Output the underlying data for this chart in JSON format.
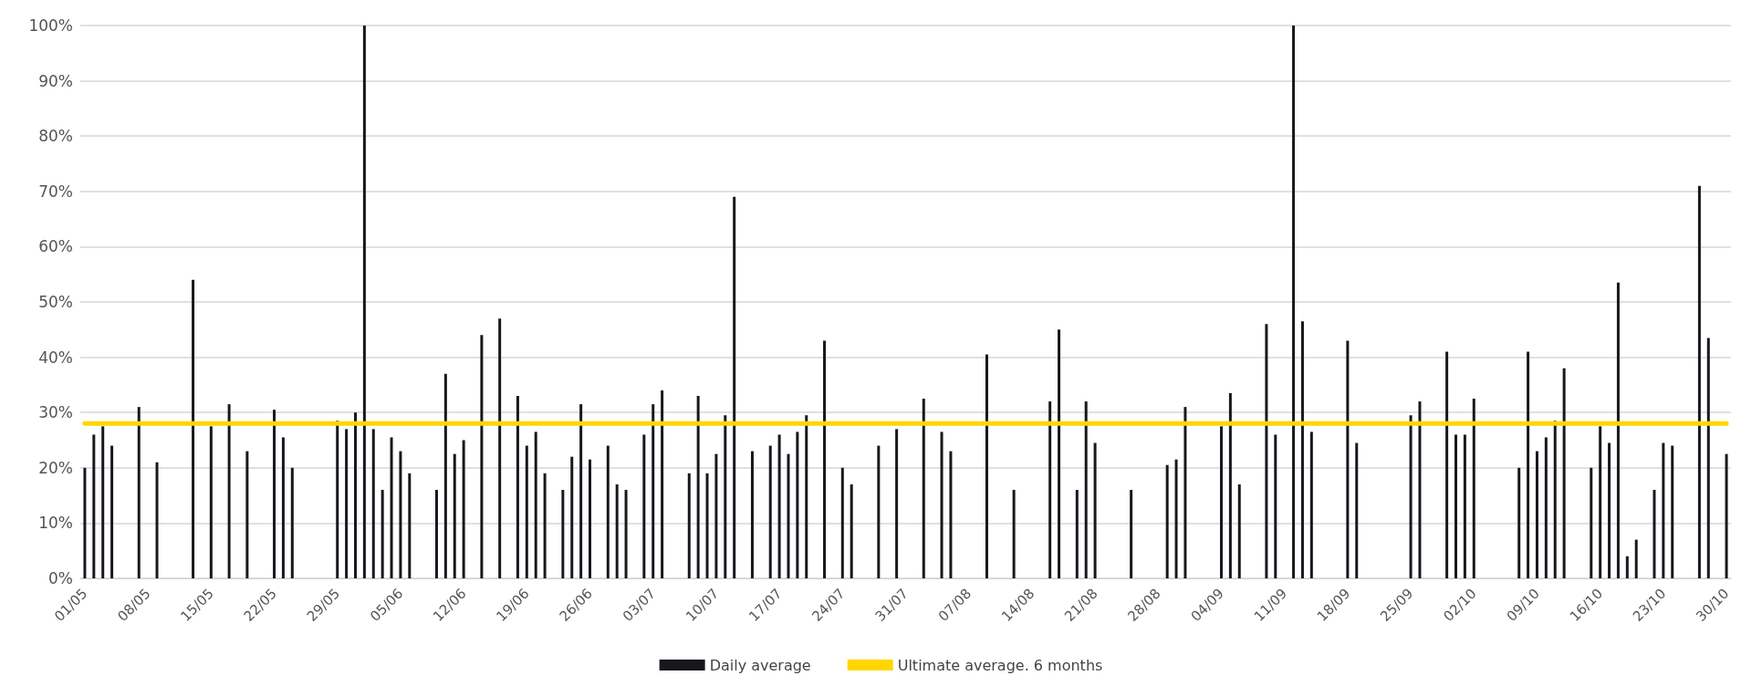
{
  "chart_data": {
    "type": "bar",
    "categories": [
      "01/05",
      null,
      null,
      null,
      null,
      null,
      null,
      "08/05",
      null,
      null,
      null,
      null,
      null,
      null,
      "15/05",
      null,
      null,
      null,
      null,
      null,
      null,
      "22/05",
      null,
      null,
      null,
      null,
      null,
      null,
      "29/05",
      null,
      null,
      null,
      null,
      null,
      null,
      "05/06",
      null,
      null,
      null,
      null,
      null,
      null,
      "12/06",
      null,
      null,
      null,
      null,
      null,
      null,
      "19/06",
      null,
      null,
      null,
      null,
      null,
      null,
      "26/06",
      null,
      null,
      null,
      null,
      null,
      null,
      "03/07",
      null,
      null,
      null,
      null,
      null,
      null,
      "10/07",
      null,
      null,
      null,
      null,
      null,
      null,
      "17/07",
      null,
      null,
      null,
      null,
      null,
      null,
      "24/07",
      null,
      null,
      null,
      null,
      null,
      null,
      "31/07",
      null,
      null,
      null,
      null,
      null,
      null,
      "07/08",
      null,
      null,
      null,
      null,
      null,
      null,
      "14/08",
      null,
      null,
      null,
      null,
      null,
      null,
      "21/08",
      null,
      null,
      null,
      null,
      null,
      null,
      "28/08",
      null,
      null,
      null,
      null,
      null,
      null,
      "04/09",
      null,
      null,
      null,
      null,
      null,
      null,
      "11/09",
      null,
      null,
      null,
      null,
      null,
      null,
      "18/09",
      null,
      null,
      null,
      null,
      null,
      null,
      "25/09",
      null,
      null,
      null,
      null,
      null,
      null,
      "02/10",
      null,
      null,
      null,
      null,
      null,
      null,
      "09/10",
      null,
      null,
      null,
      null,
      null,
      null,
      "16/10",
      null,
      null,
      null,
      null,
      null,
      null,
      "23/10",
      null,
      null,
      null,
      null,
      null,
      null,
      "30/10"
    ],
    "series": [
      {
        "name": "Daily average",
        "color": "#16181d",
        "values": [
          20,
          26,
          27.5,
          24,
          null,
          null,
          31,
          null,
          21,
          null,
          null,
          null,
          54,
          null,
          27.5,
          null,
          31.5,
          null,
          23,
          null,
          null,
          30.5,
          25.5,
          20,
          null,
          null,
          null,
          null,
          28.5,
          27,
          30,
          100,
          27,
          16,
          25.5,
          23,
          19,
          null,
          null,
          16,
          37,
          22.5,
          25,
          null,
          44,
          null,
          47,
          null,
          33,
          24,
          26.5,
          19,
          null,
          16,
          22,
          31.5,
          21.5,
          null,
          24,
          17,
          16,
          null,
          26,
          31.5,
          34,
          null,
          null,
          19,
          33,
          19,
          22.5,
          29.5,
          69,
          null,
          23,
          null,
          24,
          26,
          22.5,
          26.5,
          29.5,
          null,
          43,
          null,
          20,
          17,
          null,
          null,
          24,
          null,
          27,
          null,
          null,
          32.5,
          null,
          26.5,
          23,
          null,
          null,
          null,
          40.5,
          null,
          null,
          16,
          null,
          null,
          null,
          32,
          45,
          null,
          16,
          32,
          24.5,
          null,
          null,
          null,
          16,
          null,
          null,
          null,
          20.5,
          21.5,
          31,
          null,
          null,
          null,
          27.5,
          33.5,
          17,
          null,
          null,
          46,
          26,
          null,
          100,
          46.5,
          26.5,
          null,
          null,
          null,
          43,
          24.5,
          null,
          null,
          null,
          null,
          null,
          29.5,
          32,
          null,
          null,
          41,
          26,
          26,
          32.5,
          null,
          null,
          null,
          null,
          20,
          41,
          23,
          25.5,
          28.5,
          38,
          null,
          null,
          20,
          27.5,
          24.5,
          53.5,
          4,
          7,
          null,
          16,
          24.5,
          24,
          null,
          null,
          71,
          43.5,
          null,
          22.5
        ]
      },
      {
        "name": "Ultimate average. 6 months",
        "type": "line",
        "color": "#ffd600",
        "values": [
          28,
          28,
          28,
          28,
          28,
          28,
          28,
          28,
          28,
          28,
          28,
          28,
          28,
          28,
          28,
          28,
          28,
          28,
          28,
          28,
          28,
          28,
          28,
          28,
          28,
          28,
          28,
          28,
          28,
          28,
          28,
          28,
          28,
          28,
          28,
          28,
          28,
          28,
          28,
          28,
          28,
          28,
          28,
          28,
          28,
          28,
          28,
          28,
          28,
          28,
          28,
          28,
          28,
          28,
          28,
          28,
          28,
          28,
          28,
          28,
          28,
          28,
          28,
          28,
          28,
          28,
          28,
          28,
          28,
          28,
          28,
          28,
          28,
          28,
          28,
          28,
          28,
          28,
          28,
          28,
          28,
          28,
          28,
          28,
          28,
          28,
          28,
          28,
          28,
          28,
          28,
          28,
          28,
          28,
          28,
          28,
          28,
          28,
          28,
          28,
          28,
          28,
          28,
          28,
          28,
          28,
          28,
          28,
          28,
          28,
          28,
          28,
          28,
          28,
          28,
          28,
          28,
          28,
          28,
          28,
          28,
          28,
          28,
          28,
          28,
          28,
          28,
          28,
          28,
          28,
          28,
          28,
          28,
          28,
          28,
          28,
          28,
          28,
          28,
          28,
          28,
          28,
          28,
          28,
          28,
          28,
          28,
          28,
          28,
          28,
          28,
          28,
          28,
          28,
          28,
          28,
          28,
          28,
          28,
          28,
          28,
          28,
          28,
          28,
          28,
          28,
          28,
          28,
          28,
          28,
          28,
          28,
          28,
          28,
          28,
          28,
          28,
          28,
          28,
          28,
          28,
          28,
          28
        ]
      }
    ],
    "ylim": [
      0,
      100
    ],
    "yticks": [
      {
        "value": 0,
        "label": "0%"
      },
      {
        "value": 10,
        "label": "10%"
      },
      {
        "value": 20,
        "label": "20%"
      },
      {
        "value": 30,
        "label": "30%"
      },
      {
        "value": 40,
        "label": "40%"
      },
      {
        "value": 50,
        "label": "50%"
      },
      {
        "value": 60,
        "label": "60%"
      },
      {
        "value": 70,
        "label": "70%"
      },
      {
        "value": 80,
        "label": "80%"
      },
      {
        "value": 90,
        "label": "90%"
      },
      {
        "value": 100,
        "label": "100%"
      }
    ],
    "grid": "y",
    "legend": "bottom",
    "marker": "none"
  }
}
